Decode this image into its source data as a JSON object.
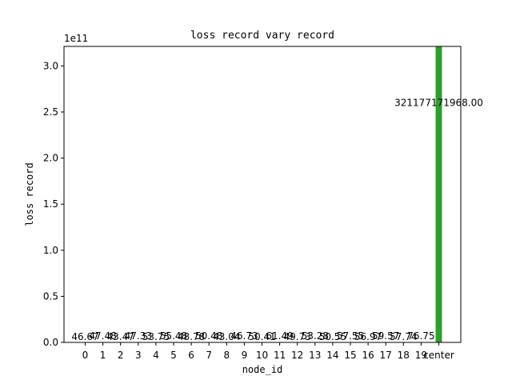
{
  "chart_data": {
    "type": "bar",
    "title": "loss record vary record",
    "xlabel": "node_id",
    "ylabel": "loss record",
    "y_offset_text": "1e11",
    "y_scale_exponent": 11,
    "ylim": [
      0,
      321177171968
    ],
    "yticks": [
      0,
      50000000000,
      100000000000,
      150000000000,
      200000000000,
      250000000000,
      300000000000
    ],
    "ytick_labels": [
      "0.0",
      "0.5",
      "1.0",
      "1.5",
      "2.0",
      "2.5",
      "3.0"
    ],
    "categories": [
      "0",
      "1",
      "2",
      "3",
      "4",
      "5",
      "6",
      "7",
      "8",
      "9",
      "10",
      "11",
      "12",
      "13",
      "14",
      "15",
      "16",
      "17",
      "18",
      "19",
      "center"
    ],
    "series": [
      {
        "values": [
          46.67,
          47.48,
          43.47,
          47.33,
          53.75,
          55.48,
          48.78,
          50.48,
          43.04,
          46.73,
          50.41,
          61.49,
          49.73,
          53.28,
          50.55,
          57.55,
          56.97,
          59.57,
          57.74,
          76.75,
          321177171968.0
        ],
        "labels": [
          "46.67",
          "47.48",
          "43.47",
          "47.33",
          "53.75",
          "55.48",
          "48.78",
          "50.48",
          "43.04",
          "46.73",
          "50.41",
          "61.49",
          "49.73",
          "53.28",
          "50.55",
          "57.55",
          "56.97",
          "59.57",
          "57.74",
          "76.75",
          "321177171968.00"
        ],
        "color": "#2ca02c"
      }
    ]
  }
}
